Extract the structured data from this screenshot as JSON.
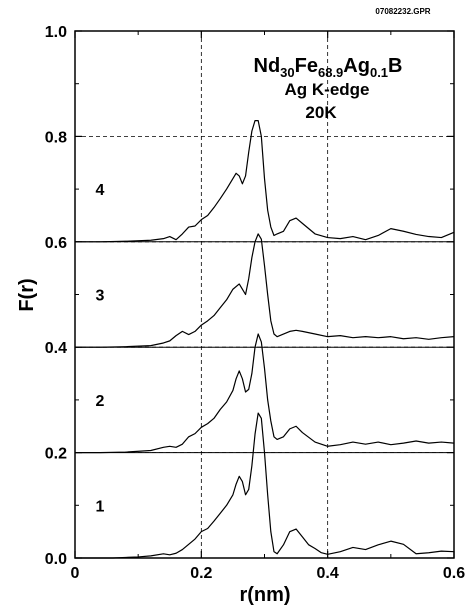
{
  "file_id": "07082232.GPR",
  "chart_data": {
    "type": "line",
    "title": {
      "formula": [
        {
          "text": "Nd",
          "sub": false
        },
        {
          "text": "30",
          "sub": true
        },
        {
          "text": "Fe",
          "sub": false
        },
        {
          "text": "68.9",
          "sub": true
        },
        {
          "text": "Ag",
          "sub": false
        },
        {
          "text": "0.1",
          "sub": true
        },
        {
          "text": "B",
          "sub": false
        }
      ],
      "line2": "Ag K-edge",
      "line3": "20K"
    },
    "xlabel": "r(nm)",
    "ylabel": "F(r)",
    "xlim": [
      0,
      0.6
    ],
    "ylim": [
      0,
      1.0
    ],
    "x_ticks": [
      "0",
      "0.2",
      "0.4",
      "0.6"
    ],
    "y_ticks": [
      "0.0",
      "0.2",
      "0.4",
      "0.6",
      "0.8",
      "1.0"
    ],
    "grid": "dashed",
    "series": [
      {
        "name": "1",
        "offset": 0.0,
        "x": [
          0.0,
          0.02,
          0.04,
          0.06,
          0.08,
          0.1,
          0.12,
          0.14,
          0.15,
          0.16,
          0.17,
          0.18,
          0.19,
          0.2,
          0.21,
          0.22,
          0.23,
          0.24,
          0.25,
          0.255,
          0.26,
          0.265,
          0.27,
          0.275,
          0.28,
          0.285,
          0.29,
          0.295,
          0.3,
          0.305,
          0.31,
          0.315,
          0.32,
          0.33,
          0.34,
          0.35,
          0.36,
          0.37,
          0.38,
          0.39,
          0.4,
          0.42,
          0.44,
          0.46,
          0.48,
          0.5,
          0.52,
          0.54,
          0.56,
          0.58,
          0.6
        ],
        "y": [
          0.0,
          0.0,
          0.0,
          0.0,
          0.001,
          0.002,
          0.004,
          0.008,
          0.006,
          0.009,
          0.016,
          0.026,
          0.036,
          0.05,
          0.056,
          0.07,
          0.085,
          0.1,
          0.12,
          0.14,
          0.155,
          0.145,
          0.12,
          0.13,
          0.175,
          0.235,
          0.275,
          0.265,
          0.2,
          0.12,
          0.05,
          0.012,
          0.008,
          0.025,
          0.05,
          0.055,
          0.04,
          0.025,
          0.018,
          0.01,
          0.007,
          0.012,
          0.02,
          0.016,
          0.025,
          0.032,
          0.026,
          0.008,
          0.01,
          0.013,
          0.012
        ]
      },
      {
        "name": "2",
        "offset": 0.2,
        "x": [
          0.0,
          0.04,
          0.08,
          0.12,
          0.14,
          0.15,
          0.16,
          0.17,
          0.18,
          0.19,
          0.2,
          0.21,
          0.22,
          0.23,
          0.24,
          0.25,
          0.255,
          0.26,
          0.265,
          0.27,
          0.275,
          0.28,
          0.285,
          0.29,
          0.295,
          0.3,
          0.305,
          0.31,
          0.315,
          0.32,
          0.33,
          0.34,
          0.35,
          0.36,
          0.38,
          0.4,
          0.42,
          0.44,
          0.46,
          0.48,
          0.5,
          0.52,
          0.54,
          0.56,
          0.58,
          0.6
        ],
        "y": [
          0.0,
          0.0,
          0.001,
          0.004,
          0.01,
          0.012,
          0.01,
          0.016,
          0.03,
          0.036,
          0.048,
          0.055,
          0.065,
          0.082,
          0.096,
          0.118,
          0.14,
          0.155,
          0.14,
          0.115,
          0.12,
          0.15,
          0.2,
          0.225,
          0.21,
          0.16,
          0.1,
          0.06,
          0.03,
          0.025,
          0.03,
          0.045,
          0.05,
          0.038,
          0.02,
          0.012,
          0.015,
          0.02,
          0.016,
          0.02,
          0.015,
          0.018,
          0.022,
          0.018,
          0.02,
          0.018
        ]
      },
      {
        "name": "3",
        "offset": 0.4,
        "x": [
          0.0,
          0.04,
          0.08,
          0.12,
          0.14,
          0.15,
          0.16,
          0.17,
          0.18,
          0.19,
          0.2,
          0.21,
          0.22,
          0.23,
          0.24,
          0.25,
          0.26,
          0.265,
          0.27,
          0.275,
          0.28,
          0.285,
          0.29,
          0.295,
          0.3,
          0.305,
          0.31,
          0.315,
          0.32,
          0.33,
          0.34,
          0.35,
          0.36,
          0.38,
          0.4,
          0.42,
          0.44,
          0.46,
          0.48,
          0.5,
          0.52,
          0.54,
          0.56,
          0.58,
          0.6
        ],
        "y": [
          0.0,
          0.0,
          0.001,
          0.003,
          0.008,
          0.012,
          0.022,
          0.03,
          0.024,
          0.03,
          0.042,
          0.05,
          0.06,
          0.075,
          0.09,
          0.11,
          0.12,
          0.11,
          0.1,
          0.13,
          0.17,
          0.2,
          0.215,
          0.205,
          0.155,
          0.1,
          0.05,
          0.025,
          0.02,
          0.025,
          0.03,
          0.032,
          0.03,
          0.025,
          0.02,
          0.022,
          0.018,
          0.02,
          0.018,
          0.02,
          0.016,
          0.018,
          0.015,
          0.018,
          0.02
        ]
      },
      {
        "name": "4",
        "offset": 0.6,
        "x": [
          0.0,
          0.04,
          0.08,
          0.12,
          0.14,
          0.15,
          0.16,
          0.17,
          0.18,
          0.19,
          0.2,
          0.21,
          0.22,
          0.23,
          0.24,
          0.25,
          0.255,
          0.26,
          0.265,
          0.27,
          0.275,
          0.28,
          0.285,
          0.29,
          0.295,
          0.3,
          0.305,
          0.31,
          0.315,
          0.32,
          0.33,
          0.34,
          0.35,
          0.36,
          0.38,
          0.4,
          0.42,
          0.44,
          0.46,
          0.48,
          0.5,
          0.52,
          0.54,
          0.56,
          0.58,
          0.6
        ],
        "y": [
          0.0,
          0.0,
          0.001,
          0.003,
          0.006,
          0.01,
          0.004,
          0.015,
          0.028,
          0.03,
          0.042,
          0.05,
          0.065,
          0.082,
          0.1,
          0.12,
          0.13,
          0.125,
          0.11,
          0.125,
          0.17,
          0.21,
          0.23,
          0.23,
          0.2,
          0.12,
          0.06,
          0.028,
          0.012,
          0.015,
          0.02,
          0.04,
          0.045,
          0.035,
          0.015,
          0.008,
          0.006,
          0.01,
          0.004,
          0.012,
          0.025,
          0.02,
          0.014,
          0.01,
          0.008,
          0.018
        ]
      }
    ]
  }
}
